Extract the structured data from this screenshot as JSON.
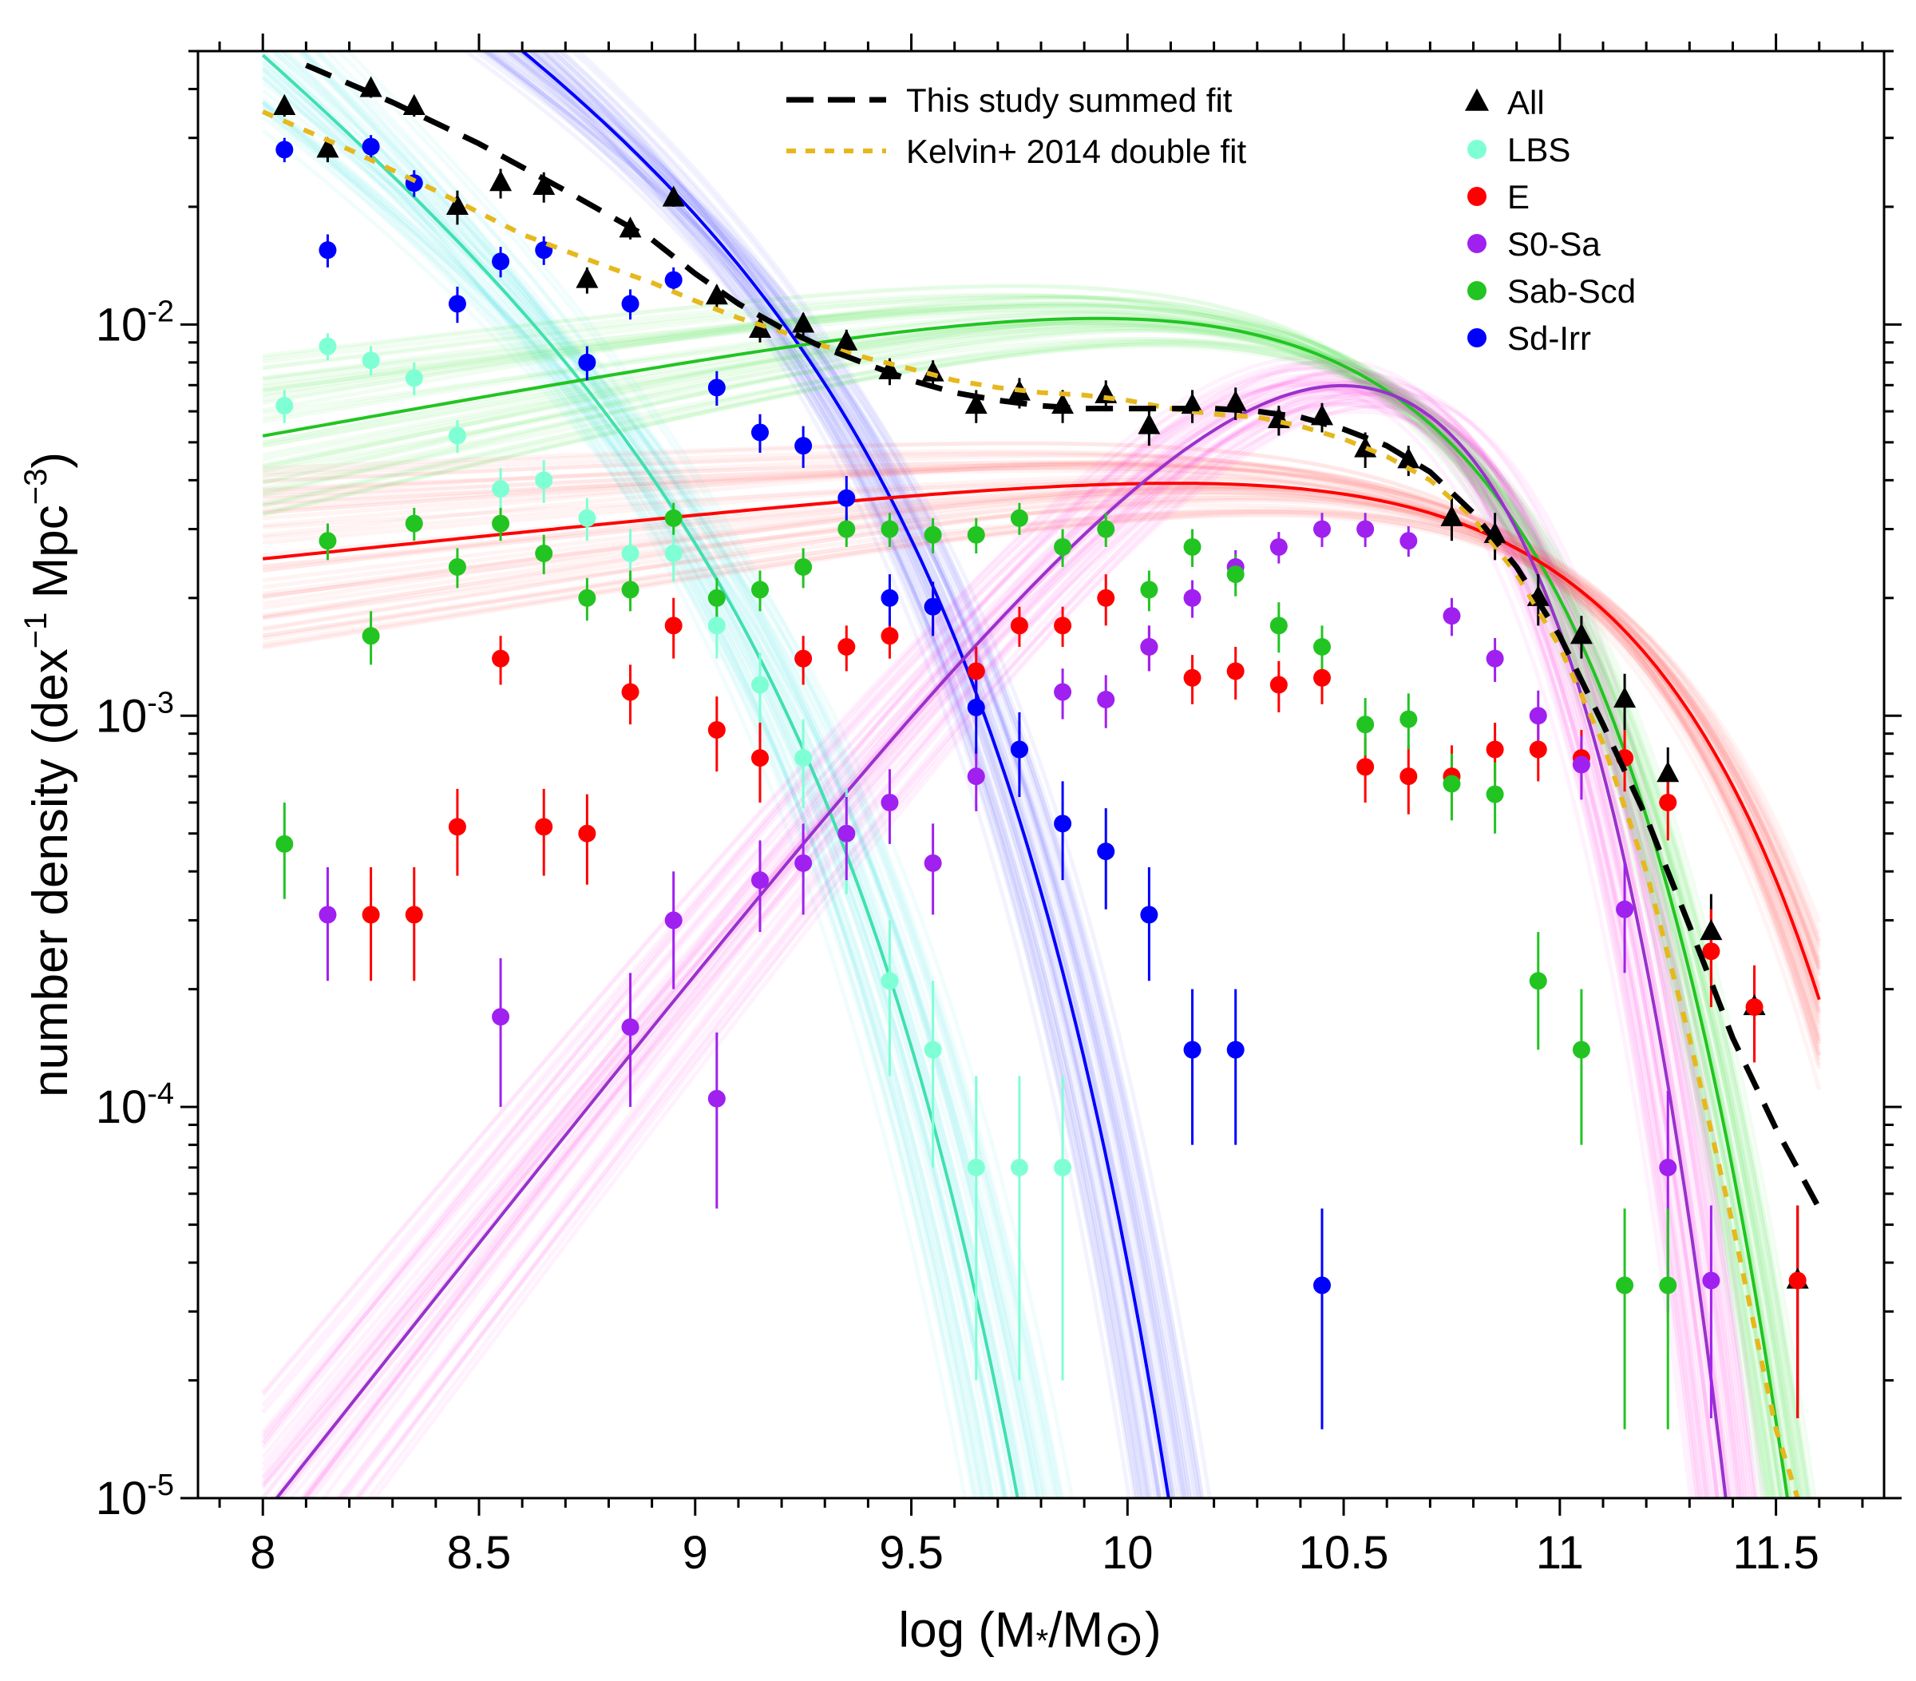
{
  "chart_data": {
    "type": "scatter",
    "xlabel": "log (M*/M⊙)",
    "xlabel_parts": {
      "prefix": "log (M",
      "star": "*",
      "mid": "/M",
      "sun": "⊙",
      "suffix": ")"
    },
    "ylabel": "number density (dex⁻¹ Mpc⁻³)",
    "ylabel_parts": {
      "prefix": "number density (dex",
      "sup1": "−1",
      "mid": " Mpc",
      "sup2": "−3",
      "suffix": ")"
    },
    "xlim": [
      7.85,
      11.75
    ],
    "ylim": [
      1e-05,
      0.05
    ],
    "yscale": "log",
    "x_ticks": [
      8,
      8.5,
      9,
      9.5,
      10,
      10.5,
      11,
      11.5
    ],
    "x_tick_labels": [
      "8",
      "8.5",
      "9",
      "9.5",
      "10",
      "10.5",
      "11",
      "11.5"
    ],
    "y_ticks": [
      1e-05,
      0.0001,
      0.001,
      0.01
    ],
    "y_tick_labels": [
      {
        "base": "10",
        "exp": "-5"
      },
      {
        "base": "10",
        "exp": "-4"
      },
      {
        "base": "10",
        "exp": "-3"
      },
      {
        "base": "10",
        "exp": "-2"
      }
    ],
    "legend_lines": [
      {
        "name": "This study summed fit",
        "color": "#000000",
        "style": "dashed"
      },
      {
        "name": "Kelvin+ 2014 double fit",
        "color": "#E6B81E",
        "style": "dotted"
      }
    ],
    "legend_points": [
      {
        "name": "All",
        "color": "#000000",
        "marker": "triangle"
      },
      {
        "name": "LBS",
        "color": "#7FFFD4",
        "marker": "circle"
      },
      {
        "name": "E",
        "color": "#FF0000",
        "marker": "circle"
      },
      {
        "name": "S0-Sa",
        "color": "#A020F0",
        "marker": "circle"
      },
      {
        "name": "Sab-Scd",
        "color": "#22C422",
        "marker": "circle"
      },
      {
        "name": "Sd-Irr",
        "color": "#0000FF",
        "marker": "circle"
      }
    ],
    "fits": [
      {
        "name": "Sd-Irr fit",
        "color": "#0000FF",
        "band_color": "#5A5AFF",
        "band_width": 0.09,
        "log_phi": -2.08,
        "alpha": -1.72,
        "log_mstar": 9.3
      },
      {
        "name": "LBS fit",
        "color": "#40E0B0",
        "band_color": "#3FE8E8",
        "band_width": 0.12,
        "log_phi": -2.58,
        "alpha": -1.9,
        "log_mstar": 9.05
      },
      {
        "name": "Sab-Scd fit",
        "color": "#22C422",
        "band_color": "#33E033",
        "band_width": 0.06,
        "log_phi": -2.12,
        "alpha": -0.8,
        "log_mstar": 10.63
      },
      {
        "name": "E fit",
        "color": "#FF0000",
        "band_color": "#FF5050",
        "band_width": 0.06,
        "log_phi": -2.61,
        "alpha": -0.885,
        "log_mstar": 11.05
      },
      {
        "name": "S0-Sa fit",
        "color": "#9932CC",
        "band_color": "#FF33DD",
        "band_width": 0.08,
        "log_phi": -2.115,
        "alpha": 0.4,
        "log_mstar": 10.35
      }
    ],
    "summed_fit": {
      "name": "This study summed fit",
      "x": [
        8.1,
        8.3,
        8.5,
        8.7,
        8.9,
        9.0,
        9.1,
        9.2,
        9.3,
        9.4,
        9.5,
        9.6,
        9.7,
        9.8,
        9.9,
        10.0,
        10.1,
        10.2,
        10.3,
        10.4,
        10.5,
        10.6,
        10.7,
        10.8,
        10.9,
        11.0,
        11.1,
        11.2,
        11.3,
        11.4,
        11.5,
        11.6
      ],
      "y": [
        0.046,
        0.037,
        0.029,
        0.022,
        0.0165,
        0.0135,
        0.0113,
        0.0098,
        0.0087,
        0.0079,
        0.0072,
        0.0067,
        0.0064,
        0.0062,
        0.0061,
        0.0061,
        0.0061,
        0.0061,
        0.006,
        0.0058,
        0.0054,
        0.0049,
        0.0042,
        0.0033,
        0.0024,
        0.0016,
        0.00095,
        0.00055,
        0.00029,
        0.00015,
        8.8e-05,
        5.5e-05
      ]
    },
    "kelvin_fit": {
      "name": "Kelvin+ 2014 double fit",
      "x": [
        8.0,
        8.2,
        8.4,
        8.6,
        8.8,
        8.9,
        9.0,
        9.1,
        9.2,
        9.3,
        9.4,
        9.5,
        9.6,
        9.7,
        9.8,
        9.9,
        10.0,
        10.1,
        10.2,
        10.3,
        10.4,
        10.5,
        10.6,
        10.7,
        10.8,
        10.9,
        11.0,
        11.1,
        11.2,
        11.3,
        11.4,
        11.5,
        11.55
      ],
      "y": [
        0.035,
        0.028,
        0.022,
        0.017,
        0.014,
        0.0128,
        0.0115,
        0.0104,
        0.0096,
        0.0088,
        0.0082,
        0.0077,
        0.0072,
        0.0069,
        0.0067,
        0.0066,
        0.0064,
        0.0061,
        0.0059,
        0.0058,
        0.0055,
        0.0051,
        0.0046,
        0.004,
        0.0032,
        0.0023,
        0.0015,
        0.00085,
        0.0004,
        0.00015,
        5e-05,
        1.5e-05,
        1e-05
      ]
    },
    "series": [
      {
        "name": "All",
        "color": "#000000",
        "marker": "triangle",
        "x": [
          8.05,
          8.15,
          8.25,
          8.35,
          8.45,
          8.55,
          8.65,
          8.75,
          8.85,
          8.95,
          9.05,
          9.15,
          9.25,
          9.35,
          9.45,
          9.55,
          9.65,
          9.75,
          9.85,
          9.95,
          10.05,
          10.15,
          10.25,
          10.35,
          10.45,
          10.55,
          10.65,
          10.75,
          10.85,
          10.95,
          11.05,
          11.15,
          11.25,
          11.35,
          11.45,
          11.55
        ],
        "y": [
          0.036,
          0.028,
          0.04,
          0.036,
          0.02,
          0.023,
          0.0225,
          0.013,
          0.0175,
          0.021,
          0.0118,
          0.0097,
          0.01,
          0.009,
          0.0076,
          0.0075,
          0.0062,
          0.0067,
          0.0062,
          0.0066,
          0.0055,
          0.0062,
          0.0063,
          0.0057,
          0.0058,
          0.0048,
          0.0045,
          0.0032,
          0.0029,
          0.002,
          0.0016,
          0.0011,
          0.00071,
          0.00028,
          0.00018,
          3.6e-05
        ],
        "err_lo": [
          0.002,
          0.002,
          0.002,
          0.002,
          0.002,
          0.002,
          0.002,
          0.001,
          0.001,
          0.001,
          0.0008,
          0.0007,
          0.0007,
          0.0007,
          0.0006,
          0.0006,
          0.0006,
          0.0006,
          0.0006,
          0.0006,
          0.0006,
          0.0006,
          0.0006,
          0.0005,
          0.0005,
          0.0005,
          0.0004,
          0.0004,
          0.0004,
          0.0003,
          0.0002,
          0.00018,
          0.00012,
          7e-05,
          4e-05,
          2e-05
        ],
        "err_hi": [
          0.002,
          0.002,
          0.002,
          0.002,
          0.002,
          0.002,
          0.002,
          0.001,
          0.001,
          0.001,
          0.0008,
          0.0007,
          0.0007,
          0.0007,
          0.0006,
          0.0006,
          0.0006,
          0.0006,
          0.0006,
          0.0006,
          0.0006,
          0.0006,
          0.0006,
          0.0005,
          0.0005,
          0.0005,
          0.0004,
          0.0004,
          0.0004,
          0.0003,
          0.0002,
          0.00018,
          0.00012,
          7e-05,
          4e-05,
          2e-05
        ]
      },
      {
        "name": "LBS",
        "color": "#7FFFD4",
        "marker": "circle",
        "x": [
          8.05,
          8.15,
          8.25,
          8.35,
          8.45,
          8.55,
          8.65,
          8.75,
          8.85,
          8.95,
          9.05,
          9.15,
          9.25,
          9.35,
          9.45,
          9.55,
          9.65,
          9.75,
          9.85
        ],
        "y": [
          0.0062,
          0.0088,
          0.0081,
          0.0073,
          0.0052,
          0.0038,
          0.004,
          0.0032,
          0.0026,
          0.0026,
          0.0017,
          0.0012,
          0.00078,
          0.0005,
          0.00021,
          0.00014,
          7e-05,
          7e-05,
          7e-05
        ],
        "err_lo": [
          0.0006,
          0.0007,
          0.0007,
          0.0007,
          0.0005,
          0.0005,
          0.0005,
          0.0004,
          0.0004,
          0.0004,
          0.0003,
          0.00025,
          0.0002,
          0.00015,
          9e-05,
          7e-05,
          5e-05,
          5e-05,
          5e-05
        ],
        "err_hi": [
          0.0006,
          0.0007,
          0.0007,
          0.0007,
          0.0005,
          0.0005,
          0.0005,
          0.0004,
          0.0004,
          0.0004,
          0.0003,
          0.00025,
          0.0002,
          0.00015,
          9e-05,
          7e-05,
          5e-05,
          5e-05,
          5e-05
        ]
      },
      {
        "name": "E",
        "color": "#FF0000",
        "marker": "circle",
        "x": [
          8.25,
          8.35,
          8.45,
          8.55,
          8.65,
          8.75,
          8.85,
          8.95,
          9.05,
          9.15,
          9.25,
          9.35,
          9.45,
          9.55,
          9.65,
          9.75,
          9.85,
          9.95,
          10.05,
          10.15,
          10.25,
          10.35,
          10.45,
          10.55,
          10.65,
          10.75,
          10.85,
          10.95,
          11.05,
          11.15,
          11.25,
          11.35,
          11.45,
          11.55
        ],
        "y": [
          0.00031,
          0.00031,
          0.00052,
          0.0014,
          0.00052,
          0.0005,
          0.00115,
          0.0017,
          0.00092,
          0.00078,
          0.0014,
          0.0015,
          0.0016,
          0.0019,
          0.0013,
          0.0017,
          0.0017,
          0.002,
          0.0015,
          0.00125,
          0.0013,
          0.0012,
          0.00125,
          0.00074,
          0.0007,
          0.0007,
          0.00082,
          0.00082,
          0.00078,
          0.00078,
          0.0006,
          0.00025,
          0.00018,
          3.6e-05
        ],
        "err_lo": [
          0.0001,
          0.0001,
          0.00013,
          0.0002,
          0.00013,
          0.00013,
          0.0002,
          0.0003,
          0.0002,
          0.00018,
          0.0002,
          0.0002,
          0.0002,
          0.0003,
          0.0002,
          0.0002,
          0.0002,
          0.0003,
          0.0002,
          0.00018,
          0.0002,
          0.00018,
          0.00018,
          0.00014,
          0.00014,
          0.00014,
          0.00014,
          0.00014,
          0.00014,
          0.00014,
          0.00012,
          7e-05,
          5e-05,
          2e-05
        ],
        "err_hi": [
          0.0001,
          0.0001,
          0.00013,
          0.0002,
          0.00013,
          0.00013,
          0.0002,
          0.0003,
          0.0002,
          0.00018,
          0.0002,
          0.0002,
          0.0002,
          0.0003,
          0.0002,
          0.0002,
          0.0002,
          0.0003,
          0.0002,
          0.00018,
          0.0002,
          0.00018,
          0.00018,
          0.00014,
          0.00014,
          0.00014,
          0.00014,
          0.00014,
          0.00014,
          0.00014,
          0.00012,
          7e-05,
          5e-05,
          2e-05
        ]
      },
      {
        "name": "S0-Sa",
        "color": "#A020F0",
        "marker": "circle",
        "x": [
          8.15,
          8.55,
          8.85,
          8.95,
          9.05,
          9.15,
          9.25,
          9.35,
          9.45,
          9.55,
          9.65,
          9.75,
          9.85,
          9.95,
          10.05,
          10.15,
          10.25,
          10.35,
          10.45,
          10.55,
          10.65,
          10.75,
          10.85,
          10.95,
          11.05,
          11.15,
          11.25,
          11.35
        ],
        "y": [
          0.00031,
          0.00017,
          0.00016,
          0.0003,
          0.000105,
          0.00038,
          0.00042,
          0.0005,
          0.0006,
          0.00042,
          0.0007,
          0.00082,
          0.00115,
          0.0011,
          0.0015,
          0.002,
          0.0024,
          0.0027,
          0.003,
          0.003,
          0.0028,
          0.0018,
          0.0014,
          0.001,
          0.00075,
          0.00032,
          7e-05,
          3.6e-05
        ],
        "err_lo": [
          0.0001,
          7e-05,
          6e-05,
          0.0001,
          5e-05,
          0.0001,
          0.00011,
          0.00012,
          0.00013,
          0.00011,
          0.00013,
          0.00015,
          0.00017,
          0.00017,
          0.0002,
          0.00022,
          0.00025,
          0.00025,
          0.0003,
          0.0003,
          0.00025,
          0.0002,
          0.00018,
          0.00016,
          0.00014,
          0.0001,
          4e-05,
          2e-05
        ],
        "err_hi": [
          0.0001,
          7e-05,
          6e-05,
          0.0001,
          5e-05,
          0.0001,
          0.00011,
          0.00012,
          0.00013,
          0.00011,
          0.00013,
          0.00015,
          0.00017,
          0.00017,
          0.0002,
          0.00022,
          0.00025,
          0.00025,
          0.0003,
          0.0003,
          0.00025,
          0.0002,
          0.00018,
          0.00016,
          0.00014,
          0.0001,
          4e-05,
          2e-05
        ]
      },
      {
        "name": "Sab-Scd",
        "color": "#22C422",
        "marker": "circle",
        "x": [
          8.05,
          8.15,
          8.25,
          8.35,
          8.45,
          8.55,
          8.65,
          8.75,
          8.85,
          8.95,
          9.05,
          9.15,
          9.25,
          9.35,
          9.45,
          9.55,
          9.65,
          9.75,
          9.85,
          9.95,
          10.05,
          10.15,
          10.25,
          10.35,
          10.45,
          10.55,
          10.65,
          10.75,
          10.85,
          10.95,
          11.05,
          11.15,
          11.25
        ],
        "y": [
          0.00047,
          0.0028,
          0.0016,
          0.0031,
          0.0024,
          0.0031,
          0.0026,
          0.002,
          0.0021,
          0.0032,
          0.002,
          0.0021,
          0.0024,
          0.003,
          0.003,
          0.0029,
          0.0029,
          0.0032,
          0.0027,
          0.003,
          0.0021,
          0.0027,
          0.0023,
          0.0017,
          0.0015,
          0.00095,
          0.00098,
          0.00067,
          0.00063,
          0.00021,
          0.00014,
          3.5e-05,
          3.5e-05
        ],
        "err_lo": [
          0.00013,
          0.0003,
          0.00025,
          0.0003,
          0.00028,
          0.0003,
          0.0003,
          0.00025,
          0.00025,
          0.0003,
          0.00025,
          0.00025,
          0.00028,
          0.0003,
          0.0003,
          0.0003,
          0.0003,
          0.0003,
          0.0003,
          0.0003,
          0.00025,
          0.0003,
          0.00028,
          0.00025,
          0.0002,
          0.00016,
          0.00016,
          0.00013,
          0.00013,
          7e-05,
          6e-05,
          2e-05,
          2e-05
        ],
        "err_hi": [
          0.00013,
          0.0003,
          0.00025,
          0.0003,
          0.00028,
          0.0003,
          0.0003,
          0.00025,
          0.00025,
          0.0003,
          0.00025,
          0.00025,
          0.00028,
          0.0003,
          0.0003,
          0.0003,
          0.0003,
          0.0003,
          0.0003,
          0.0003,
          0.00025,
          0.0003,
          0.00028,
          0.00025,
          0.0002,
          0.00016,
          0.00016,
          0.00013,
          0.00013,
          7e-05,
          6e-05,
          2e-05,
          2e-05
        ]
      },
      {
        "name": "Sd-Irr",
        "color": "#0000FF",
        "marker": "circle",
        "x": [
          8.05,
          8.15,
          8.25,
          8.35,
          8.45,
          8.55,
          8.65,
          8.75,
          8.85,
          8.95,
          9.05,
          9.15,
          9.25,
          9.35,
          9.45,
          9.55,
          9.65,
          9.75,
          9.85,
          9.95,
          10.05,
          10.15,
          10.25,
          10.45
        ],
        "y": [
          0.028,
          0.0155,
          0.0285,
          0.023,
          0.0113,
          0.0145,
          0.0155,
          0.008,
          0.0113,
          0.013,
          0.0069,
          0.0053,
          0.0049,
          0.0036,
          0.002,
          0.0019,
          0.00105,
          0.00082,
          0.00053,
          0.00045,
          0.00031,
          0.00014,
          0.00014,
          3.5e-05
        ],
        "err_lo": [
          0.002,
          0.0015,
          0.002,
          0.0018,
          0.0012,
          0.0013,
          0.0013,
          0.0008,
          0.001,
          0.001,
          0.0007,
          0.0006,
          0.0006,
          0.0005,
          0.0003,
          0.0003,
          0.00025,
          0.0002,
          0.00015,
          0.00013,
          0.0001,
          6e-05,
          6e-05,
          2e-05
        ],
        "err_hi": [
          0.002,
          0.0015,
          0.002,
          0.0018,
          0.0012,
          0.0013,
          0.0013,
          0.0008,
          0.001,
          0.001,
          0.0007,
          0.0006,
          0.0006,
          0.0005,
          0.0003,
          0.0003,
          0.00025,
          0.0002,
          0.00015,
          0.00013,
          0.0001,
          6e-05,
          6e-05,
          2e-05
        ]
      }
    ]
  }
}
